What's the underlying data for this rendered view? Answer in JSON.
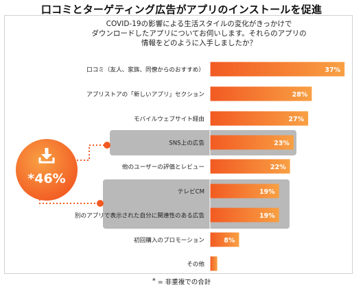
{
  "title": "口コミとターゲティング広告がアプリのインストールを促進",
  "question": [
    "COVID-19の影響による生活スタイルの変化がきっかけで",
    "ダウンロードしたアプリについてお伺いします。それらのアプリの",
    "情報をどのように入手しましたか？"
  ],
  "callout": {
    "value_label": "*46%",
    "icon": "download-icon",
    "color": "#f25a22"
  },
  "footnote": {
    "marker": "*",
    "text": "= 非重複での合計"
  },
  "colors": {
    "bar_start": "#f25a22",
    "bar_end": "#f8a044",
    "highlight_box": "#b9b9b9",
    "dotted_line": "#f25a22"
  },
  "chart_data": {
    "type": "bar",
    "orientation": "horizontal",
    "categories": [
      "口コミ（友人、家族、同僚からのおすすめ）",
      "アプリストアの「新しいアプリ」セクション",
      "モバイルウェブサイト経由",
      "SNS上の広告",
      "他のユーザーの評価とレビュー",
      "テレビCM",
      "別のアプリで表示された自分に関連性のある広告",
      "初回購入のプロモーション",
      "その他"
    ],
    "values": [
      37,
      28,
      27,
      23,
      22,
      19,
      19,
      8,
      2
    ],
    "value_labels": [
      "37%",
      "28%",
      "27%",
      "23%",
      "22%",
      "19%",
      "19%",
      "8%",
      ""
    ],
    "highlighted": [
      3,
      5,
      6
    ],
    "xlim": [
      0,
      40
    ],
    "grid": false,
    "legend": "none"
  }
}
